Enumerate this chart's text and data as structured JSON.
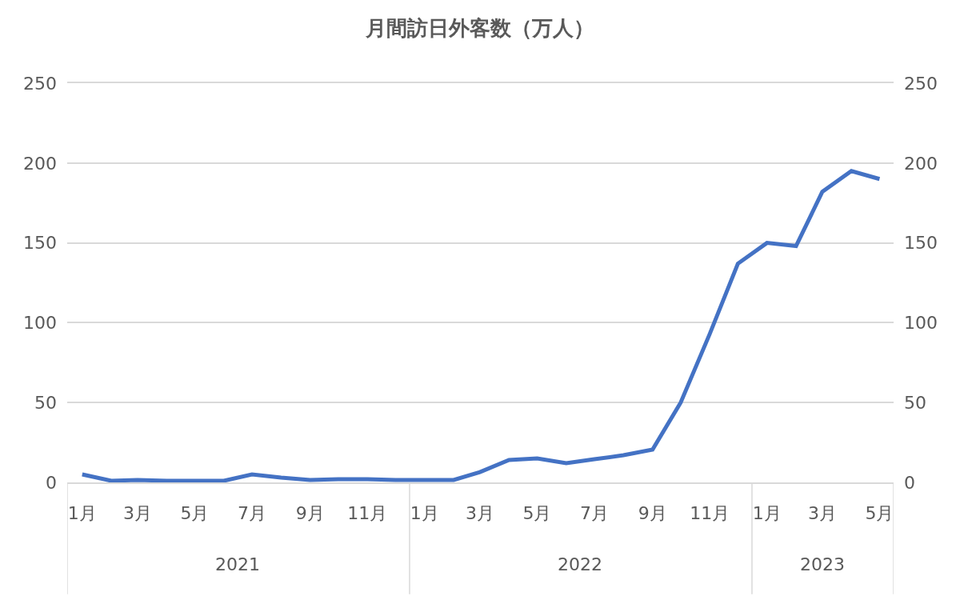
{
  "chart_data": {
    "type": "line",
    "title": "月間訪日外客数（万人）",
    "x": [
      "2021-01",
      "2021-02",
      "2021-03",
      "2021-04",
      "2021-05",
      "2021-06",
      "2021-07",
      "2021-08",
      "2021-09",
      "2021-10",
      "2021-11",
      "2021-12",
      "2022-01",
      "2022-02",
      "2022-03",
      "2022-04",
      "2022-05",
      "2022-06",
      "2022-07",
      "2022-08",
      "2022-09",
      "2022-10",
      "2022-11",
      "2022-12",
      "2023-01",
      "2023-02",
      "2023-03",
      "2023-04",
      "2023-05"
    ],
    "series": [
      {
        "color": "#4472c4",
        "values": [
          5,
          1,
          1.5,
          1,
          1,
          1,
          5,
          3,
          1.5,
          2,
          2,
          1.5,
          1.5,
          1.5,
          6.5,
          14,
          15,
          12,
          14.5,
          17,
          20.5,
          50,
          93,
          137,
          150,
          148,
          182,
          195,
          190
        ]
      }
    ],
    "xlim": [
      "2020-12-16",
      "2023-05-16"
    ],
    "xticks": [
      {
        "value": "2021-01",
        "label": "1月"
      },
      {
        "value": "2021-03",
        "label": "3月"
      },
      {
        "value": "2021-05",
        "label": "5月"
      },
      {
        "value": "2021-07",
        "label": "7月"
      },
      {
        "value": "2021-09",
        "label": "9月"
      },
      {
        "value": "2021-11",
        "label": "11月"
      },
      {
        "value": "2022-01",
        "label": "1月"
      },
      {
        "value": "2022-03",
        "label": "3月"
      },
      {
        "value": "2022-05",
        "label": "5月"
      },
      {
        "value": "2022-07",
        "label": "7月"
      },
      {
        "value": "2022-09",
        "label": "9月"
      },
      {
        "value": "2022-11",
        "label": "11月"
      },
      {
        "value": "2023-01",
        "label": "1月"
      },
      {
        "value": "2023-03",
        "label": "3月"
      },
      {
        "value": "2023-05",
        "label": "5月"
      }
    ],
    "annotations": [
      "2021",
      "2022",
      "2023"
    ],
    "ylim": [
      0,
      250
    ],
    "yticks": [
      0,
      50,
      100,
      150,
      200,
      250
    ],
    "y2lim": [
      0,
      250
    ],
    "y2ticks": [
      0,
      50,
      100,
      150,
      200,
      250
    ],
    "grid": "y",
    "marker": "none",
    "line_style": "solid"
  }
}
